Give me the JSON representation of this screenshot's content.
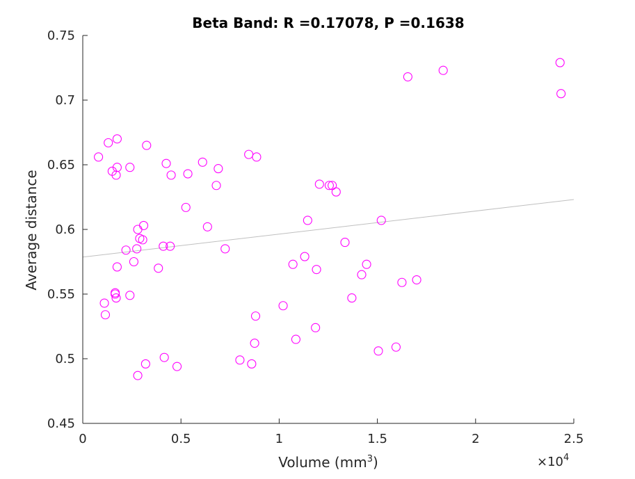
{
  "chart_data": {
    "type": "scatter",
    "title": "Beta Band: R =0.17078, P =0.1638",
    "xlabel": "Volume (mm",
    "xlabel_superscript": "3",
    "xlabel_suffix": ")",
    "ylabel": "Average distance",
    "x_exponent_label": "×10",
    "x_exponent": "4",
    "xlim": [
      0,
      25000
    ],
    "ylim": [
      0.45,
      0.75
    ],
    "x_ticks": [
      {
        "value": 0,
        "label": "0"
      },
      {
        "value": 5000,
        "label": "0.5"
      },
      {
        "value": 10000,
        "label": "1"
      },
      {
        "value": 15000,
        "label": "1.5"
      },
      {
        "value": 20000,
        "label": "2"
      },
      {
        "value": 25000,
        "label": "2.5"
      }
    ],
    "y_ticks": [
      {
        "value": 0.45,
        "label": "0.45"
      },
      {
        "value": 0.5,
        "label": "0.5"
      },
      {
        "value": 0.55,
        "label": "0.55"
      },
      {
        "value": 0.6,
        "label": "0.6"
      },
      {
        "value": 0.65,
        "label": "0.65"
      },
      {
        "value": 0.7,
        "label": "0.7"
      },
      {
        "value": 0.75,
        "label": "0.75"
      }
    ],
    "grid": false,
    "marker_color": "#ff00ff",
    "fit_line_color": "#bfbfbf",
    "fit_line": {
      "x": [
        0,
        25000
      ],
      "y": [
        0.5786,
        0.6231
      ]
    },
    "series": [
      {
        "marker": "circle",
        "points": [
          [
            800,
            0.656
          ],
          [
            1300,
            0.667
          ],
          [
            1750,
            0.67
          ],
          [
            1500,
            0.645
          ],
          [
            1700,
            0.642
          ],
          [
            1750,
            0.648
          ],
          [
            2400,
            0.648
          ],
          [
            3250,
            0.665
          ],
          [
            1100,
            0.543
          ],
          [
            1150,
            0.534
          ],
          [
            1650,
            0.551
          ],
          [
            1650,
            0.55
          ],
          [
            1700,
            0.547
          ],
          [
            1750,
            0.571
          ],
          [
            2200,
            0.584
          ],
          [
            2400,
            0.549
          ],
          [
            2600,
            0.575
          ],
          [
            2750,
            0.585
          ],
          [
            2800,
            0.6
          ],
          [
            2900,
            0.593
          ],
          [
            3050,
            0.592
          ],
          [
            3100,
            0.603
          ],
          [
            2800,
            0.487
          ],
          [
            3200,
            0.496
          ],
          [
            3850,
            0.57
          ],
          [
            4100,
            0.587
          ],
          [
            4250,
            0.651
          ],
          [
            4500,
            0.642
          ],
          [
            4450,
            0.587
          ],
          [
            4150,
            0.501
          ],
          [
            4800,
            0.494
          ],
          [
            5250,
            0.617
          ],
          [
            5350,
            0.643
          ],
          [
            6100,
            0.652
          ],
          [
            6350,
            0.602
          ],
          [
            6800,
            0.634
          ],
          [
            6900,
            0.647
          ],
          [
            7250,
            0.585
          ],
          [
            8000,
            0.499
          ],
          [
            8450,
            0.658
          ],
          [
            8850,
            0.656
          ],
          [
            8600,
            0.496
          ],
          [
            8750,
            0.512
          ],
          [
            8800,
            0.533
          ],
          [
            10200,
            0.541
          ],
          [
            10700,
            0.573
          ],
          [
            10850,
            0.515
          ],
          [
            11300,
            0.579
          ],
          [
            11450,
            0.607
          ],
          [
            11850,
            0.524
          ],
          [
            11900,
            0.569
          ],
          [
            12050,
            0.635
          ],
          [
            12550,
            0.634
          ],
          [
            12700,
            0.634
          ],
          [
            12900,
            0.629
          ],
          [
            13350,
            0.59
          ],
          [
            13700,
            0.547
          ],
          [
            14200,
            0.565
          ],
          [
            14450,
            0.573
          ],
          [
            15050,
            0.506
          ],
          [
            15200,
            0.607
          ],
          [
            15950,
            0.509
          ],
          [
            16250,
            0.559
          ],
          [
            16550,
            0.718
          ],
          [
            17000,
            0.561
          ],
          [
            18350,
            0.723
          ],
          [
            24300,
            0.729
          ],
          [
            24350,
            0.705
          ]
        ]
      }
    ]
  }
}
